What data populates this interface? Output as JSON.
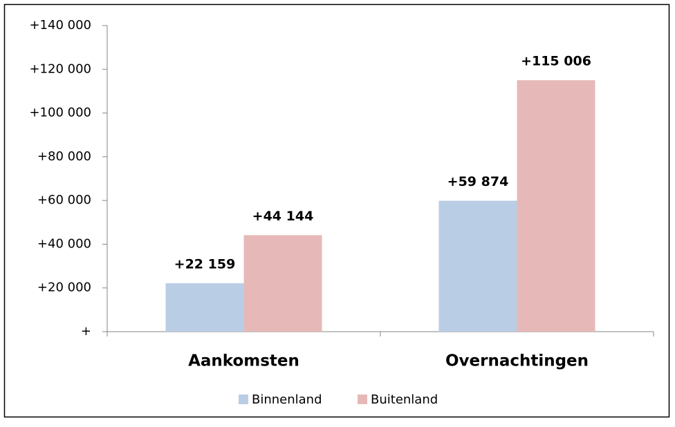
{
  "chart_data": {
    "type": "bar",
    "categories": [
      "Aankomsten",
      "Overnachtingen"
    ],
    "series": [
      {
        "name": "Binnenland",
        "color": "#b9cde5",
        "values": [
          22159,
          59874
        ],
        "value_labels": [
          "+22 159",
          "+59 874"
        ]
      },
      {
        "name": "Buitenland",
        "color": "#e6b9b8",
        "values": [
          44144,
          115006
        ],
        "value_labels": [
          "+44 144",
          "+115 006"
        ]
      }
    ],
    "ylim": [
      0,
      140000
    ],
    "yticks": [
      {
        "value": 0,
        "label": "+"
      },
      {
        "value": 20000,
        "label": "+20 000"
      },
      {
        "value": 40000,
        "label": "+40 000"
      },
      {
        "value": 60000,
        "label": "+60 000"
      },
      {
        "value": 80000,
        "label": "+80 000"
      },
      {
        "value": 100000,
        "label": "+100 000"
      },
      {
        "value": 120000,
        "label": "+120 000"
      },
      {
        "value": 140000,
        "label": "+140 000"
      }
    ],
    "grid": false,
    "legend": "bottom"
  }
}
